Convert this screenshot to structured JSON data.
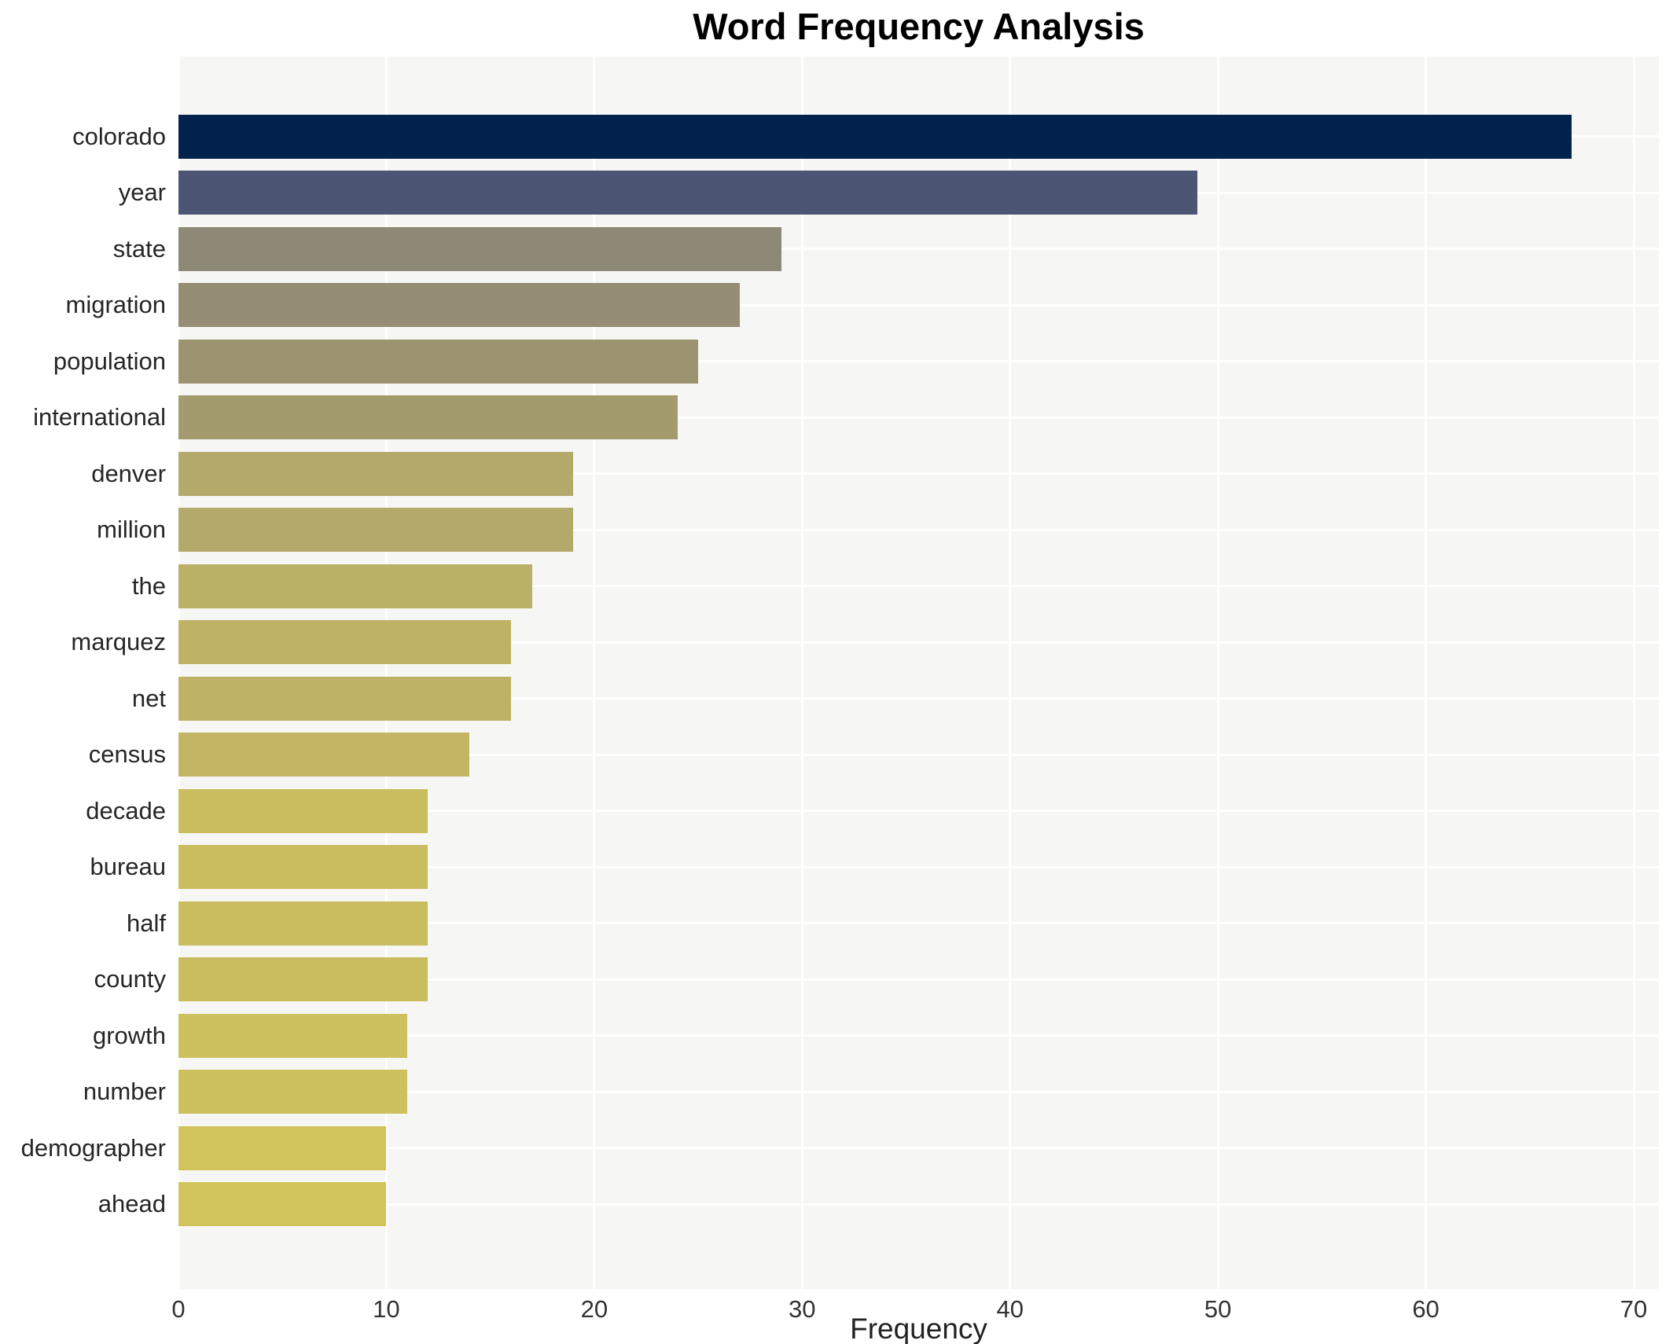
{
  "chart_data": {
    "type": "bar",
    "orientation": "horizontal",
    "title": "Word Frequency Analysis",
    "xlabel": "Frequency",
    "ylabel": "",
    "xlim": [
      0,
      70
    ],
    "xticks": [
      0,
      10,
      20,
      30,
      40,
      50,
      60,
      70
    ],
    "grid": "on",
    "gridline_color": "#ffffff",
    "plot_bg_color": "#f6f6f4",
    "figure_bg_color": "#ffffff",
    "legend_position": "none",
    "categories": [
      "colorado",
      "year",
      "state",
      "migration",
      "population",
      "international",
      "denver",
      "million",
      "the",
      "marquez",
      "net",
      "census",
      "decade",
      "bureau",
      "half",
      "county",
      "growth",
      "number",
      "demographer",
      "ahead"
    ],
    "values": [
      67,
      49,
      29,
      27,
      25,
      24,
      19,
      19,
      17,
      16,
      16,
      14,
      12,
      12,
      12,
      12,
      11,
      11,
      10,
      10
    ],
    "bar_colors": [
      "#02224e",
      "#4c5674",
      "#8e8876",
      "#958e74",
      "#9c9471",
      "#a39b6e",
      "#b3a96b",
      "#b3a96b",
      "#bab066",
      "#beb365",
      "#beb365",
      "#c2b665",
      "#cabd60",
      "#cabd60",
      "#cabd60",
      "#cabd60",
      "#cdc05e",
      "#cdc05e",
      "#d2c45c",
      "#d2c45c"
    ]
  }
}
